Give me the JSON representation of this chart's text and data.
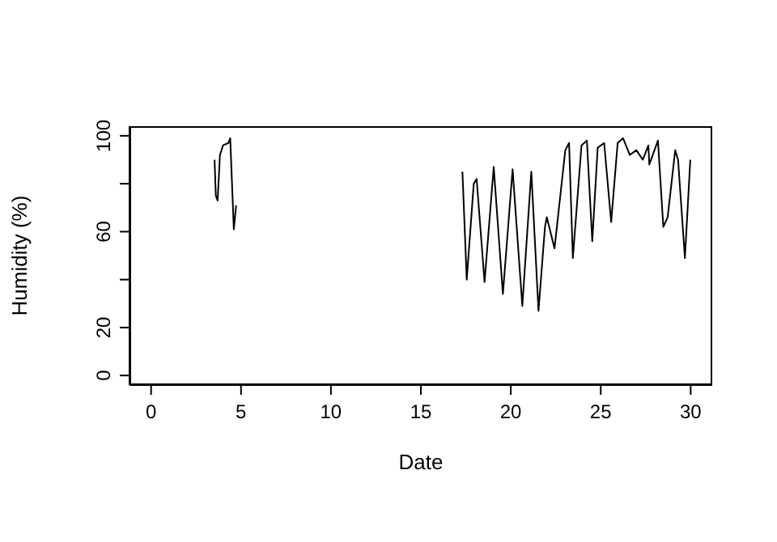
{
  "chart_data": {
    "type": "line",
    "xlabel": "Date",
    "ylabel": "Humidity (%)",
    "color": "#000000",
    "x": [
      3.53,
      3.6,
      3.7,
      3.83,
      4.0,
      4.3,
      4.4,
      4.6,
      4.73,
      10,
      17.31,
      17.55,
      17.94,
      18.1,
      18.54,
      19.05,
      19.56,
      20.1,
      20.64,
      21.14,
      21.54,
      21.9,
      22.0,
      22.43,
      23.03,
      23.24,
      23.45,
      23.93,
      24.23,
      24.53,
      24.83,
      25.19,
      25.58,
      25.94,
      26.24,
      26.62,
      26.98,
      27.34,
      27.65,
      27.7,
      28.18,
      28.48,
      28.72,
      29.14,
      29.3,
      29.68,
      29.98
    ],
    "values": [
      90,
      75,
      73,
      92,
      96,
      97,
      99,
      61,
      71,
      null,
      85,
      40,
      80,
      82,
      39,
      87,
      34,
      86,
      29,
      85,
      27,
      62,
      66,
      53,
      94,
      97,
      49,
      96,
      98,
      56,
      95,
      97,
      64,
      97,
      99,
      92,
      94,
      90,
      96,
      88,
      98,
      62,
      66,
      94,
      90,
      49,
      90
    ],
    "xlim": [
      -1.2,
      31.2
    ],
    "xticks": [
      0,
      5,
      10,
      15,
      20,
      25,
      30
    ],
    "ylim": [
      -4,
      104
    ],
    "yticks": [
      0,
      20,
      {
        "value": 40,
        "label": null
      },
      60,
      {
        "value": 80,
        "label": null
      },
      100
    ],
    "grid": false,
    "marker": "none",
    "line_style": "solid"
  }
}
